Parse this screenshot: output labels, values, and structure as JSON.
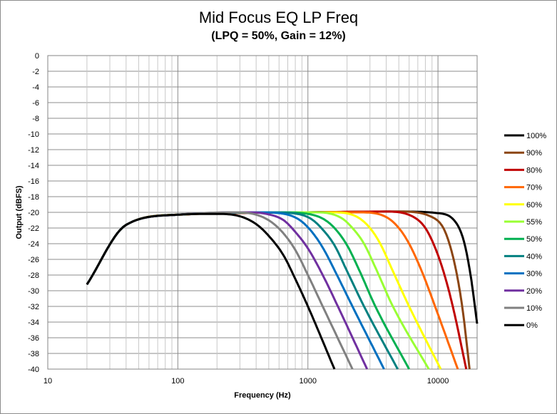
{
  "chart_data": {
    "type": "line",
    "title": "Mid Focus EQ LP Freq",
    "subtitle": "(LPQ = 50%, Gain = 12%)",
    "xlabel": "Frequency (Hz)",
    "ylabel": "Output (dBFS)",
    "x_scale": "log",
    "xlim": [
      10,
      20000
    ],
    "ylim": [
      -40,
      0
    ],
    "x_ticks": [
      "10",
      "100",
      "1000",
      "10000"
    ],
    "y_ticks": [
      "0",
      "-2",
      "-4",
      "-6",
      "-8",
      "-10",
      "-12",
      "-14",
      "-16",
      "-18",
      "-20",
      "-22",
      "-24",
      "-26",
      "-28",
      "-30",
      "-32",
      "-34",
      "-36",
      "-38",
      "-40"
    ],
    "grid": true,
    "legend_position": "right",
    "series": [
      {
        "name": "100%",
        "color": "#000000",
        "x": [
          20,
          40,
          100,
          1000,
          5000,
          10000,
          14000,
          16000,
          18000,
          20000
        ],
        "y": [
          -29.2,
          -21.6,
          -20.3,
          -20.0,
          -19.9,
          -20.1,
          -21.5,
          -24,
          -28.5,
          -34.2
        ]
      },
      {
        "name": "90%",
        "color": "#8B4513",
        "x": [
          20,
          40,
          100,
          1000,
          5000,
          9000,
          11000,
          12500,
          14000,
          15500,
          17500
        ],
        "y": [
          -29.2,
          -21.6,
          -20.3,
          -20.0,
          -19.9,
          -20.6,
          -22,
          -24.5,
          -28,
          -32.5,
          -40
        ]
      },
      {
        "name": "80%",
        "color": "#C00000",
        "x": [
          20,
          40,
          100,
          1000,
          4000,
          6500,
          8000,
          9500,
          11000,
          13000,
          16500
        ],
        "y": [
          -29.2,
          -21.6,
          -20.3,
          -20.0,
          -19.9,
          -20.6,
          -22,
          -24.5,
          -27.5,
          -32,
          -40
        ]
      },
      {
        "name": "70%",
        "color": "#FF6600",
        "x": [
          20,
          40,
          100,
          1000,
          2500,
          4000,
          5000,
          6000,
          7500,
          9500,
          14200
        ],
        "y": [
          -29.2,
          -21.6,
          -20.3,
          -20.0,
          -20.0,
          -20.6,
          -22,
          -24,
          -27.5,
          -32,
          -40
        ]
      },
      {
        "name": "60%",
        "color": "#FFFF00",
        "x": [
          20,
          40,
          100,
          1000,
          1600,
          2400,
          3000,
          3600,
          4500,
          6000,
          10500
        ],
        "y": [
          -29.2,
          -21.6,
          -20.3,
          -20.0,
          -20.0,
          -20.6,
          -22,
          -24,
          -27.5,
          -32,
          -40
        ]
      },
      {
        "name": "55%",
        "color": "#99FF33",
        "x": [
          20,
          40,
          100,
          800,
          1200,
          1800,
          2200,
          2700,
          3400,
          4500,
          8500
        ],
        "y": [
          -29.2,
          -21.6,
          -20.3,
          -20.0,
          -20.0,
          -20.7,
          -22,
          -24,
          -27.5,
          -32,
          -40
        ]
      },
      {
        "name": "50%",
        "color": "#00B050",
        "x": [
          20,
          40,
          100,
          600,
          900,
          1300,
          1600,
          2000,
          2500,
          3300,
          6000
        ],
        "y": [
          -29.2,
          -21.6,
          -20.3,
          -20.0,
          -20.1,
          -20.8,
          -22,
          -24.2,
          -27.5,
          -32,
          -40
        ]
      },
      {
        "name": "40%",
        "color": "#008080",
        "x": [
          20,
          40,
          100,
          500,
          750,
          1050,
          1300,
          1600,
          2000,
          2700,
          4900
        ],
        "y": [
          -29.2,
          -21.6,
          -20.3,
          -20.0,
          -20.1,
          -20.8,
          -22.2,
          -24.2,
          -27.5,
          -32,
          -40
        ]
      },
      {
        "name": "30%",
        "color": "#0070C0",
        "x": [
          20,
          40,
          100,
          400,
          600,
          850,
          1050,
          1300,
          1650,
          2200,
          3850
        ],
        "y": [
          -29.2,
          -21.6,
          -20.3,
          -20.0,
          -20.1,
          -20.9,
          -22.3,
          -24.5,
          -27.8,
          -32,
          -40
        ]
      },
      {
        "name": "20%",
        "color": "#7030A0",
        "x": [
          20,
          40,
          100,
          330,
          480,
          650,
          800,
          1000,
          1300,
          1700,
          2850
        ],
        "y": [
          -29.2,
          -21.6,
          -20.3,
          -20.0,
          -20.2,
          -21,
          -22.5,
          -24.6,
          -28,
          -32,
          -40
        ]
      },
      {
        "name": "10%",
        "color": "#808080",
        "x": [
          20,
          40,
          100,
          280,
          400,
          520,
          650,
          800,
          1000,
          1300,
          2200
        ],
        "y": [
          -29.2,
          -21.6,
          -20.3,
          -20.0,
          -20.3,
          -21.2,
          -22.7,
          -24.8,
          -28,
          -32,
          -40
        ]
      },
      {
        "name": "0%",
        "color": "#000000",
        "x": [
          20,
          40,
          100,
          200,
          300,
          400,
          500,
          650,
          800,
          1000,
          1600
        ],
        "y": [
          -29.2,
          -21.6,
          -20.3,
          -20.2,
          -20.5,
          -21.5,
          -23,
          -25.5,
          -28.5,
          -32,
          -40
        ]
      }
    ]
  }
}
